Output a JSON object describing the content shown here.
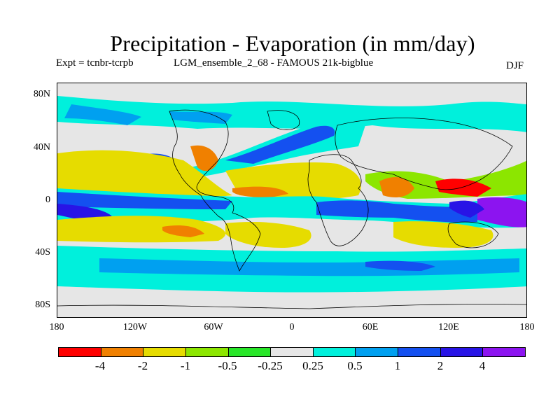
{
  "title": "Precipitation - Evaporation (in mm/day)",
  "subtitle_left": "Expt = tcnbr-tcrpb",
  "subtitle_center": "LGM_ensemble_2_68 - FAMOUS 21k-bigblue",
  "season": "DJF",
  "lat_labels": [
    "80N",
    "40N",
    "0",
    "40S",
    "80S"
  ],
  "lon_labels": [
    "180",
    "120W",
    "60W",
    "0",
    "60E",
    "120E",
    "180"
  ],
  "colorbar": {
    "colors": [
      "#ff0000",
      "#f08000",
      "#e6dc00",
      "#8ce600",
      "#28e628",
      "#e6e6e6",
      "#00f0dc",
      "#00a0f0",
      "#1450f0",
      "#2814e6",
      "#8c14f0"
    ],
    "labels": [
      "-4",
      "-2",
      "-1",
      "-0.5",
      "-0.25",
      "0.25",
      "0.5",
      "1",
      "2",
      "4"
    ]
  }
}
